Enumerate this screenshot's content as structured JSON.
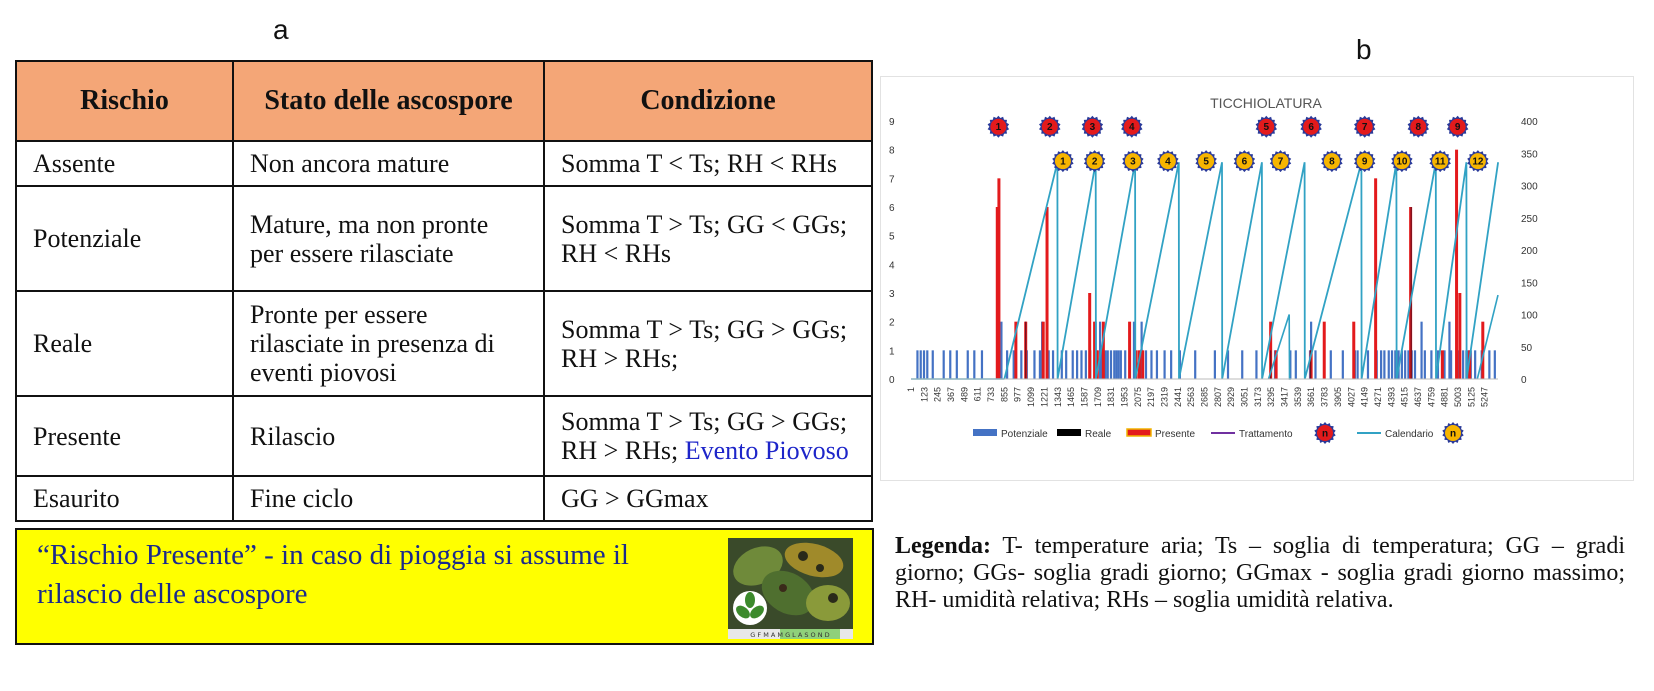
{
  "panel_a": {
    "letter": "a",
    "headers": [
      "Rischio",
      "Stato delle ascospore",
      "Condizione"
    ],
    "rows": [
      {
        "risk": "Assente",
        "state": "Non ancora mature",
        "condition": "Somma T < Ts;  RH < RHs",
        "extra": ""
      },
      {
        "risk": "Potenziale",
        "state": "Mature, ma non pronte per essere rilasciate",
        "condition": "Somma T > Ts; GG < GGs; RH < RHs",
        "extra": ""
      },
      {
        "risk": "Reale",
        "state": "Pronte per essere rilasciate in presenza di eventi piovosi",
        "condition": "Somma T > Ts;  GG > GGs; RH > RHs;",
        "extra": ""
      },
      {
        "risk": "Presente",
        "state": "Rilascio",
        "condition": "Somma T > Ts;  GG > GGs; RH > RHs; ",
        "extra": "Evento Piovoso"
      },
      {
        "risk": "Esaurito",
        "state": "Fine ciclo",
        "condition": "GG > GGmax",
        "extra": ""
      }
    ],
    "note": "“Rischio Presente” -  in caso di pioggia si assume il rilascio delle ascospore",
    "image_caption": "G F M A M G L A S O N D",
    "colors": {
      "header_bg": "#f4a677",
      "note_bg": "#ffff00",
      "note_text": "#1b2a8c",
      "highlight_text": "#1d25c9"
    }
  },
  "panel_b": {
    "letter": "b",
    "legend_label": "Legenda:",
    "legend_body": " T- temperature aria; Ts – soglia di temperatura; GG – gradi giorno; GGs- soglia gradi giorno; GGmax - soglia gradi giorno massimo; RH- umidità relativa; RHs – soglia umidità relativa."
  },
  "chart_data": {
    "type": "bar",
    "title": "TICCHIOLATURA",
    "y_left": {
      "min": 0,
      "max": 9,
      "ticks": [
        "0",
        "1",
        "2",
        "3",
        "4",
        "5",
        "6",
        "7",
        "8",
        "9"
      ]
    },
    "y_right": {
      "min": 0,
      "max": 400,
      "ticks": [
        "0",
        "50",
        "100",
        "150",
        "200",
        "250",
        "300",
        "350",
        "400"
      ]
    },
    "x_range": [
      1,
      5369
    ],
    "x_ticks": [
      "1",
      "123",
      "245",
      "367",
      "489",
      "611",
      "733",
      "855",
      "977",
      "1099",
      "1221",
      "1343",
      "1465",
      "1587",
      "1709",
      "1831",
      "1953",
      "2075",
      "2197",
      "2319",
      "2441",
      "2563",
      "2685",
      "2807",
      "2929",
      "3051",
      "3173",
      "3295",
      "3417",
      "3539",
      "3661",
      "3783",
      "3905",
      "4027",
      "4149",
      "4271",
      "4393",
      "4515",
      "4637",
      "4759",
      "4881",
      "5003",
      "5125",
      "5247"
    ],
    "legend": [
      {
        "name": "Potenziale",
        "color": "#4472c4",
        "kind": "bar"
      },
      {
        "name": "Reale",
        "color": "#000000",
        "kind": "bar"
      },
      {
        "name": "Presente",
        "color": "#e31a1c",
        "kind": "bar-outlined"
      },
      {
        "name": "Trattamento",
        "color": "#7030a0",
        "kind": "line"
      },
      {
        "name": "",
        "color": "#e31a1c",
        "kind": "badge-red"
      },
      {
        "name": "Calendario",
        "color": "#31a2c4",
        "kind": "line"
      },
      {
        "name": "",
        "color": "#f7b500",
        "kind": "badge-yellow"
      }
    ],
    "badge_legend_label": "n",
    "potenziale_bars": [
      {
        "x": 60,
        "y": 1
      },
      {
        "x": 90,
        "y": 1
      },
      {
        "x": 120,
        "y": 1
      },
      {
        "x": 150,
        "y": 1
      },
      {
        "x": 200,
        "y": 1
      },
      {
        "x": 300,
        "y": 1
      },
      {
        "x": 360,
        "y": 1
      },
      {
        "x": 420,
        "y": 1
      },
      {
        "x": 520,
        "y": 1
      },
      {
        "x": 580,
        "y": 1
      },
      {
        "x": 650,
        "y": 1
      },
      {
        "x": 820,
        "y": 1
      },
      {
        "x": 880,
        "y": 1
      },
      {
        "x": 940,
        "y": 1
      },
      {
        "x": 1010,
        "y": 1
      },
      {
        "x": 1060,
        "y": 1
      },
      {
        "x": 1130,
        "y": 1
      },
      {
        "x": 1180,
        "y": 1
      },
      {
        "x": 1260,
        "y": 1
      },
      {
        "x": 1300,
        "y": 1
      },
      {
        "x": 1380,
        "y": 1
      },
      {
        "x": 1420,
        "y": 1
      },
      {
        "x": 1480,
        "y": 1
      },
      {
        "x": 1520,
        "y": 1
      },
      {
        "x": 1560,
        "y": 1
      },
      {
        "x": 1600,
        "y": 1
      },
      {
        "x": 1640,
        "y": 1
      },
      {
        "x": 1700,
        "y": 1
      },
      {
        "x": 1740,
        "y": 1
      },
      {
        "x": 1780,
        "y": 1
      },
      {
        "x": 1800,
        "y": 1
      },
      {
        "x": 1830,
        "y": 1
      },
      {
        "x": 1860,
        "y": 1
      },
      {
        "x": 1880,
        "y": 1
      },
      {
        "x": 1900,
        "y": 1
      },
      {
        "x": 1920,
        "y": 1
      },
      {
        "x": 1960,
        "y": 1
      },
      {
        "x": 2000,
        "y": 1
      },
      {
        "x": 2050,
        "y": 1
      },
      {
        "x": 2100,
        "y": 1
      },
      {
        "x": 2150,
        "y": 1
      },
      {
        "x": 2200,
        "y": 1
      },
      {
        "x": 2250,
        "y": 1
      },
      {
        "x": 2320,
        "y": 1
      },
      {
        "x": 2380,
        "y": 1
      },
      {
        "x": 2460,
        "y": 1
      },
      {
        "x": 2600,
        "y": 1
      },
      {
        "x": 2780,
        "y": 1
      },
      {
        "x": 2900,
        "y": 1
      },
      {
        "x": 3030,
        "y": 1
      },
      {
        "x": 3160,
        "y": 1
      },
      {
        "x": 3330,
        "y": 1
      },
      {
        "x": 3520,
        "y": 1
      },
      {
        "x": 3650,
        "y": 1
      },
      {
        "x": 3700,
        "y": 1
      },
      {
        "x": 3840,
        "y": 1
      },
      {
        "x": 3950,
        "y": 1
      },
      {
        "x": 4060,
        "y": 1
      },
      {
        "x": 4180,
        "y": 1
      },
      {
        "x": 4260,
        "y": 1
      },
      {
        "x": 4300,
        "y": 1
      },
      {
        "x": 4330,
        "y": 1
      },
      {
        "x": 4370,
        "y": 1
      },
      {
        "x": 4400,
        "y": 1
      },
      {
        "x": 4430,
        "y": 1
      },
      {
        "x": 4460,
        "y": 1
      },
      {
        "x": 4490,
        "y": 1
      },
      {
        "x": 4520,
        "y": 1
      },
      {
        "x": 4550,
        "y": 1
      },
      {
        "x": 4580,
        "y": 1
      },
      {
        "x": 4610,
        "y": 1
      },
      {
        "x": 4700,
        "y": 1
      },
      {
        "x": 4760,
        "y": 1
      },
      {
        "x": 4820,
        "y": 1
      },
      {
        "x": 4880,
        "y": 1
      },
      {
        "x": 4940,
        "y": 1
      },
      {
        "x": 5000,
        "y": 1
      },
      {
        "x": 5050,
        "y": 1
      },
      {
        "x": 5080,
        "y": 1
      },
      {
        "x": 5120,
        "y": 1
      },
      {
        "x": 5160,
        "y": 1
      },
      {
        "x": 5220,
        "y": 1
      },
      {
        "x": 5290,
        "y": 1
      },
      {
        "x": 5340,
        "y": 1
      },
      {
        "x": 828,
        "y": 2
      },
      {
        "x": 1200,
        "y": 2
      },
      {
        "x": 1690,
        "y": 2
      },
      {
        "x": 1730,
        "y": 2
      },
      {
        "x": 2040,
        "y": 2
      },
      {
        "x": 2110,
        "y": 2
      },
      {
        "x": 3470,
        "y": 1
      },
      {
        "x": 3660,
        "y": 2
      },
      {
        "x": 4085,
        "y": 1
      },
      {
        "x": 4670,
        "y": 2
      },
      {
        "x": 4925,
        "y": 2
      },
      {
        "x": 5100,
        "y": 1
      }
    ],
    "presente_bars": [
      {
        "x": 790,
        "y": 6
      },
      {
        "x": 805,
        "y": 7
      },
      {
        "x": 960,
        "y": 2
      },
      {
        "x": 1050,
        "y": 2
      },
      {
        "x": 1210,
        "y": 2
      },
      {
        "x": 1245,
        "y": 6
      },
      {
        "x": 1635,
        "y": 3
      },
      {
        "x": 1680,
        "y": 2
      },
      {
        "x": 1705,
        "y": 1
      },
      {
        "x": 1760,
        "y": 2
      },
      {
        "x": 2000,
        "y": 2
      },
      {
        "x": 2060,
        "y": 1
      },
      {
        "x": 2090,
        "y": 1
      },
      {
        "x": 2120,
        "y": 1
      },
      {
        "x": 3290,
        "y": 2
      },
      {
        "x": 3340,
        "y": 1
      },
      {
        "x": 3660,
        "y": 1
      },
      {
        "x": 3780,
        "y": 2
      },
      {
        "x": 4050,
        "y": 2
      },
      {
        "x": 4250,
        "y": 7
      },
      {
        "x": 4570,
        "y": 6
      },
      {
        "x": 4860,
        "y": 1
      },
      {
        "x": 4990,
        "y": 8
      },
      {
        "x": 5020,
        "y": 3
      },
      {
        "x": 5110,
        "y": 1
      },
      {
        "x": 5230,
        "y": 2
      }
    ],
    "reale_bars": [
      {
        "x": 1050,
        "y": 2
      },
      {
        "x": 2050,
        "y": 2
      },
      {
        "x": 3290,
        "y": 1
      },
      {
        "x": 3655,
        "y": 1
      },
      {
        "x": 4575,
        "y": 6
      }
    ],
    "calendario_line": [
      {
        "x": 855,
        "y": 0
      },
      {
        "x": 1340,
        "y": 336
      },
      {
        "x": 1342,
        "y": 0
      },
      {
        "x": 1690,
        "y": 336
      },
      {
        "x": 1692,
        "y": 0
      },
      {
        "x": 2050,
        "y": 336
      },
      {
        "x": 2052,
        "y": 0
      },
      {
        "x": 2450,
        "y": 336
      },
      {
        "x": 2452,
        "y": 0
      },
      {
        "x": 2845,
        "y": 336
      },
      {
        "x": 2847,
        "y": 0
      },
      {
        "x": 3210,
        "y": 336
      },
      {
        "x": 3212,
        "y": 0
      },
      {
        "x": 3600,
        "y": 336
      },
      {
        "x": 3602,
        "y": 0
      },
      {
        "x": 4120,
        "y": 336
      },
      {
        "x": 4122,
        "y": 0
      },
      {
        "x": 4440,
        "y": 336
      },
      {
        "x": 4442,
        "y": 0
      },
      {
        "x": 4800,
        "y": 336
      },
      {
        "x": 4802,
        "y": 0
      },
      {
        "x": 5080,
        "y": 336
      },
      {
        "x": 5082,
        "y": 0
      },
      {
        "x": 5370,
        "y": 336
      }
    ],
    "calendario_extra_line": [
      {
        "x": 3270,
        "y": 0
      },
      {
        "x": 3460,
        "y": 100
      },
      {
        "x": 3462,
        "y": 0
      },
      {
        "x": 3475,
        "y": 0
      },
      {
        "x": 5180,
        "y": 0
      },
      {
        "x": 5369,
        "y": 130
      }
    ],
    "red_badges": [
      {
        "label": "1",
        "x": 800,
        "y": 8.8
      },
      {
        "label": "2",
        "x": 1270,
        "y": 8.8
      },
      {
        "label": "3",
        "x": 1660,
        "y": 8.8
      },
      {
        "label": "4",
        "x": 2020,
        "y": 8.8
      },
      {
        "label": "5",
        "x": 3250,
        "y": 8.8
      },
      {
        "label": "6",
        "x": 3660,
        "y": 8.8
      },
      {
        "label": "7",
        "x": 4150,
        "y": 8.8
      },
      {
        "label": "8",
        "x": 4640,
        "y": 8.8
      },
      {
        "label": "9",
        "x": 5000,
        "y": 8.8
      }
    ],
    "yellow_badges": [
      {
        "label": "1",
        "x": 1390,
        "y": 7.6
      },
      {
        "label": "2",
        "x": 1680,
        "y": 7.6
      },
      {
        "label": "3",
        "x": 2030,
        "y": 7.6
      },
      {
        "label": "4",
        "x": 2350,
        "y": 7.6
      },
      {
        "label": "5",
        "x": 2700,
        "y": 7.6
      },
      {
        "label": "6",
        "x": 3050,
        "y": 7.6
      },
      {
        "label": "7",
        "x": 3380,
        "y": 7.6
      },
      {
        "label": "8",
        "x": 3850,
        "y": 7.6
      },
      {
        "label": "9",
        "x": 4150,
        "y": 7.6
      },
      {
        "label": "10",
        "x": 4490,
        "y": 7.6
      },
      {
        "label": "11",
        "x": 4840,
        "y": 7.6
      },
      {
        "label": "12",
        "x": 5185,
        "y": 7.6
      }
    ]
  }
}
